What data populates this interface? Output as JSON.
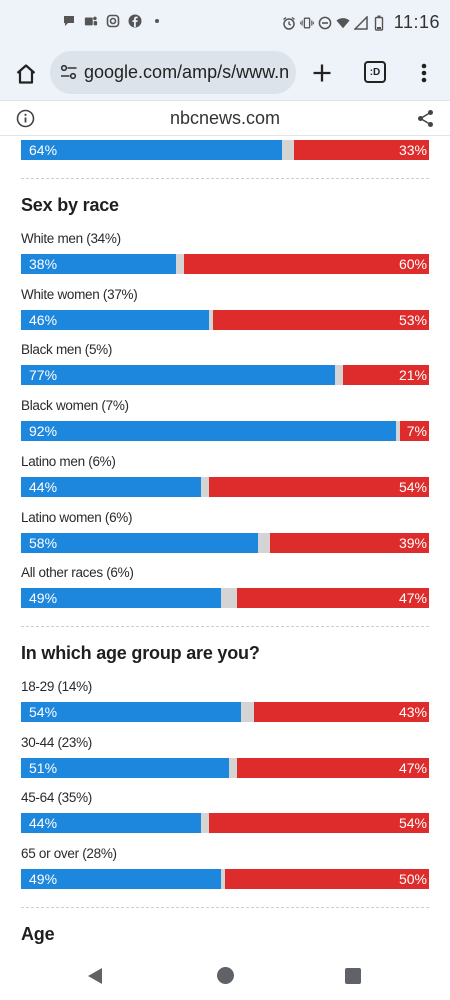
{
  "status_bar": {
    "time": "11:16",
    "left_icons": [
      "chat-bubble-icon",
      "teams-icon",
      "instagram-icon",
      "facebook-icon",
      "more-dot-icon"
    ],
    "right_icons": [
      "alarm-icon",
      "vibrate-icon",
      "dnd-icon",
      "wifi-icon",
      "signal-icon",
      "battery-icon"
    ]
  },
  "browser": {
    "url": "google.com/amp/s/www.n",
    "tab_badge": ":D",
    "site_domain": "nbcnews.com"
  },
  "colors": {
    "dem_blue": "#1d86dd",
    "rep_red": "#de2c2c",
    "other_gray": "#d4d4d4"
  },
  "top_partial": {
    "dem": "64%",
    "rep": "33%",
    "dem_value": 64,
    "rep_value": 33
  },
  "sections": [
    {
      "title": "Sex by race",
      "rows": [
        {
          "label": "White men (34%)",
          "dem": "38%",
          "rep": "60%",
          "dem_value": 38,
          "rep_value": 60
        },
        {
          "label": "White women (37%)",
          "dem": "46%",
          "rep": "53%",
          "dem_value": 46,
          "rep_value": 53
        },
        {
          "label": "Black men (5%)",
          "dem": "77%",
          "rep": "21%",
          "dem_value": 77,
          "rep_value": 21
        },
        {
          "label": "Black women (7%)",
          "dem": "92%",
          "rep": "7%",
          "dem_value": 92,
          "rep_value": 7
        },
        {
          "label": "Latino men (6%)",
          "dem": "44%",
          "rep": "54%",
          "dem_value": 44,
          "rep_value": 54
        },
        {
          "label": "Latino women (6%)",
          "dem": "58%",
          "rep": "39%",
          "dem_value": 58,
          "rep_value": 39
        },
        {
          "label": "All other races (6%)",
          "dem": "49%",
          "rep": "47%",
          "dem_value": 49,
          "rep_value": 47
        }
      ]
    },
    {
      "title": "In which age group are you?",
      "rows": [
        {
          "label": "18-29 (14%)",
          "dem": "54%",
          "rep": "43%",
          "dem_value": 54,
          "rep_value": 43
        },
        {
          "label": "30-44 (23%)",
          "dem": "51%",
          "rep": "47%",
          "dem_value": 51,
          "rep_value": 47
        },
        {
          "label": "45-64 (35%)",
          "dem": "44%",
          "rep": "54%",
          "dem_value": 44,
          "rep_value": 54
        },
        {
          "label": "65 or over (28%)",
          "dem": "49%",
          "rep": "50%",
          "dem_value": 49,
          "rep_value": 50
        }
      ]
    }
  ],
  "next_heading": "Age"
}
